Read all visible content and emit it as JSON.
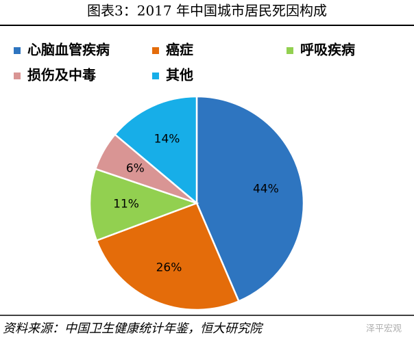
{
  "chart_data": {
    "type": "pie",
    "title": "图表3：2017 年中国城市居民死因构成",
    "categories": [
      "心脑血管疾病",
      "癌症",
      "呼吸疾病",
      "损伤及中毒",
      "其他"
    ],
    "values": [
      44,
      26,
      11,
      6,
      14
    ],
    "value_labels": [
      "44%",
      "26%",
      "11%",
      "6%",
      "14%"
    ],
    "colors": [
      "#2e75c0",
      "#e46c0a",
      "#92d050",
      "#d99594",
      "#17aee8"
    ],
    "source": "资料来源：中国卫生健康统计年鉴，恒大研究院",
    "watermark": "泽平宏观"
  }
}
